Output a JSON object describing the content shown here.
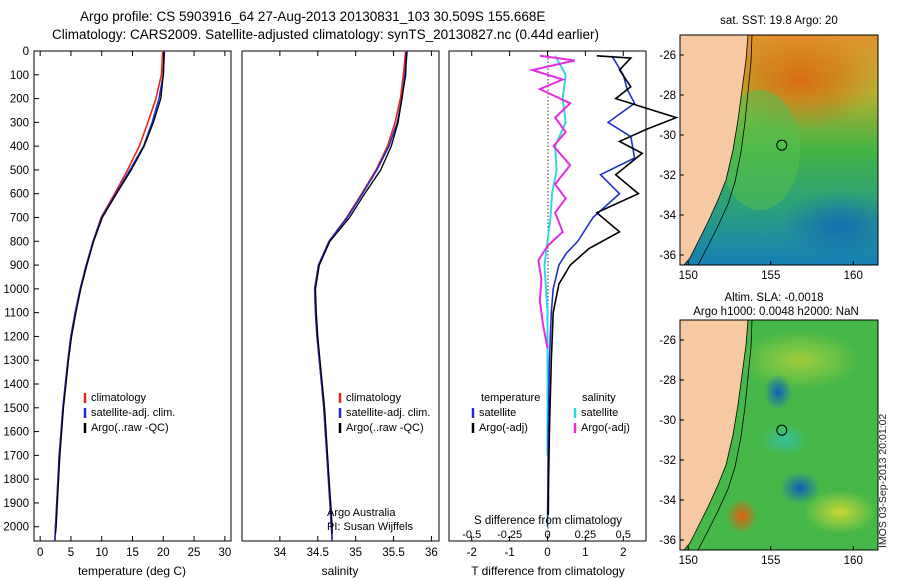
{
  "title": {
    "line1": "Argo profile: CS 5903916_64 27-Aug-2013 20130831_103 30.509S 155.668E",
    "line2": "Climatology: CARS2009. Satellite-adjusted climatology: synTS_20130827.nc (0.44d earlier)"
  },
  "colors": {
    "climatology": "#e8261c",
    "satellite": "#1f2fcc",
    "argo": "#000000",
    "sal_satellite": "#33d6e0",
    "sal_argo": "#e22ee0",
    "land": "#f6c9a2"
  },
  "chart_data": [
    {
      "type": "line",
      "id": "temperature",
      "xlabel": "temperature (deg C)",
      "xlim": [
        -1,
        31
      ],
      "xticks": [
        0,
        5,
        10,
        15,
        20,
        25,
        30
      ],
      "ylim": [
        2060,
        0
      ],
      "yticks": [
        0,
        100,
        200,
        300,
        400,
        500,
        600,
        700,
        800,
        900,
        1000,
        1100,
        1200,
        1300,
        1400,
        1500,
        1600,
        1700,
        1800,
        1900,
        2000
      ],
      "legend": [
        "climatology",
        "satellite-adj. clim.",
        "Argo(..raw -QC)"
      ],
      "series": [
        {
          "name": "climatology",
          "values": [
            [
              19.9,
              0
            ],
            [
              19.7,
              100
            ],
            [
              18.8,
              200
            ],
            [
              17.5,
              300
            ],
            [
              16.1,
              400
            ],
            [
              14.2,
              500
            ],
            [
              12.1,
              600
            ],
            [
              9.9,
              700
            ],
            [
              8.6,
              800
            ],
            [
              7.5,
              900
            ],
            [
              6.5,
              1000
            ],
            [
              5.7,
              1100
            ],
            [
              5.0,
              1200
            ],
            [
              4.5,
              1300
            ],
            [
              4.1,
              1400
            ],
            [
              3.7,
              1500
            ],
            [
              3.4,
              1600
            ],
            [
              3.1,
              1700
            ],
            [
              2.9,
              1800
            ],
            [
              2.7,
              1900
            ],
            [
              2.5,
              2000
            ],
            [
              2.4,
              2060
            ]
          ]
        },
        {
          "name": "satellite-adj. clim.",
          "values": [
            [
              20.2,
              0
            ],
            [
              20.0,
              100
            ],
            [
              19.3,
              200
            ],
            [
              18.2,
              300
            ],
            [
              16.8,
              400
            ],
            [
              14.6,
              500
            ],
            [
              12.3,
              600
            ],
            [
              10.0,
              700
            ],
            [
              8.6,
              800
            ],
            [
              7.5,
              900
            ],
            [
              6.5,
              1000
            ],
            [
              5.7,
              1100
            ],
            [
              5.0,
              1200
            ],
            [
              4.5,
              1300
            ],
            [
              4.1,
              1400
            ],
            [
              3.7,
              1500
            ],
            [
              3.4,
              1600
            ],
            [
              3.1,
              1700
            ],
            [
              2.9,
              1800
            ],
            [
              2.7,
              1900
            ],
            [
              2.5,
              2000
            ],
            [
              2.4,
              2060
            ]
          ]
        },
        {
          "name": "Argo(..raw -QC)",
          "values": [
            [
              20.1,
              5
            ],
            [
              20.0,
              100
            ],
            [
              19.6,
              200
            ],
            [
              18.4,
              300
            ],
            [
              16.9,
              400
            ],
            [
              14.8,
              500
            ],
            [
              12.4,
              600
            ],
            [
              10.1,
              700
            ],
            [
              8.7,
              800
            ],
            [
              7.6,
              900
            ],
            [
              6.6,
              1000
            ],
            [
              5.8,
              1100
            ],
            [
              5.1,
              1200
            ],
            [
              4.6,
              1300
            ],
            [
              4.2,
              1400
            ],
            [
              3.8,
              1500
            ],
            [
              3.5,
              1600
            ],
            [
              3.2,
              1700
            ],
            [
              3.0,
              1800
            ],
            [
              2.8,
              1900
            ],
            [
              2.6,
              2000
            ],
            [
              2.5,
              2030
            ]
          ]
        }
      ]
    },
    {
      "type": "line",
      "id": "salinity",
      "xlabel": "salinity",
      "xlim": [
        33.5,
        36.1
      ],
      "xticks": [
        34,
        34.5,
        35,
        35.5,
        36
      ],
      "xticklabels": [
        "34",
        "34.5",
        "35",
        "35.5",
        "36"
      ],
      "ylim": [
        2060,
        0
      ],
      "legend": [
        "climatology",
        "satellite-adj. clim.",
        "Argo(..raw -QC)"
      ],
      "annotation": [
        "Argo Australia",
        "PI: Susan Wijffels"
      ],
      "series": [
        {
          "name": "climatology",
          "values": [
            [
              35.66,
              0
            ],
            [
              35.63,
              100
            ],
            [
              35.59,
              200
            ],
            [
              35.52,
              300
            ],
            [
              35.42,
              400
            ],
            [
              35.27,
              500
            ],
            [
              35.08,
              600
            ],
            [
              34.88,
              700
            ],
            [
              34.65,
              800
            ],
            [
              34.51,
              900
            ],
            [
              34.46,
              1000
            ],
            [
              34.47,
              1100
            ],
            [
              34.49,
              1200
            ],
            [
              34.52,
              1300
            ],
            [
              34.55,
              1400
            ],
            [
              34.58,
              1500
            ],
            [
              34.6,
              1600
            ],
            [
              34.62,
              1700
            ],
            [
              34.64,
              1800
            ],
            [
              34.66,
              1900
            ],
            [
              34.68,
              2000
            ],
            [
              34.69,
              2060
            ]
          ]
        },
        {
          "name": "satellite-adj. clim.",
          "values": [
            [
              35.68,
              0
            ],
            [
              35.65,
              100
            ],
            [
              35.61,
              200
            ],
            [
              35.55,
              300
            ],
            [
              35.44,
              400
            ],
            [
              35.28,
              500
            ],
            [
              35.09,
              600
            ],
            [
              34.89,
              700
            ],
            [
              34.65,
              800
            ],
            [
              34.51,
              900
            ],
            [
              34.46,
              1000
            ],
            [
              34.47,
              1100
            ],
            [
              34.49,
              1200
            ],
            [
              34.52,
              1300
            ],
            [
              34.55,
              1400
            ],
            [
              34.58,
              1500
            ],
            [
              34.6,
              1600
            ],
            [
              34.62,
              1700
            ],
            [
              34.64,
              1800
            ],
            [
              34.66,
              1900
            ],
            [
              34.68,
              2000
            ],
            [
              34.69,
              2060
            ]
          ]
        },
        {
          "name": "Argo(..raw -QC)",
          "values": [
            [
              35.67,
              5
            ],
            [
              35.66,
              100
            ],
            [
              35.61,
              200
            ],
            [
              35.56,
              300
            ],
            [
              35.47,
              400
            ],
            [
              35.33,
              500
            ],
            [
              35.12,
              600
            ],
            [
              34.92,
              700
            ],
            [
              34.66,
              800
            ],
            [
              34.52,
              900
            ],
            [
              34.47,
              1000
            ],
            [
              34.48,
              1100
            ],
            [
              34.5,
              1200
            ],
            [
              34.53,
              1300
            ],
            [
              34.56,
              1400
            ],
            [
              34.59,
              1500
            ],
            [
              34.61,
              1600
            ],
            [
              34.63,
              1700
            ],
            [
              34.65,
              1800
            ],
            [
              34.67,
              1900
            ],
            [
              34.69,
              2000
            ],
            [
              34.69,
              2030
            ]
          ]
        }
      ]
    },
    {
      "type": "line",
      "id": "difference",
      "xlabel": "T difference from climatology",
      "xlabel_top": "S difference from climatology",
      "xlim": [
        -2.6,
        2.6
      ],
      "xticks": [
        -2,
        -1,
        0,
        1,
        2
      ],
      "xticklabels": [
        "-2",
        "-1",
        "0",
        "1",
        "2"
      ],
      "xticks_s": [
        -0.5,
        -0.25,
        0,
        0.25,
        0.5
      ],
      "xticklabels_s": [
        "-0.5",
        "-0.25",
        "0",
        "0.25",
        "0.5"
      ],
      "ylim": [
        2060,
        0
      ],
      "legend_t": {
        "header": "temperature",
        "items": [
          "satellite",
          "Argo(-adj)"
        ]
      },
      "legend_s": {
        "header": "salinity",
        "items": [
          "satellite",
          "Argo(-adj)"
        ]
      },
      "series": [
        {
          "name": "T satellite",
          "values": [
            [
              1.7,
              20
            ],
            [
              2.0,
              100
            ],
            [
              2.1,
              160
            ],
            [
              2.3,
              220
            ],
            [
              1.6,
              300
            ],
            [
              2.2,
              360
            ],
            [
              2.3,
              450
            ],
            [
              1.4,
              520
            ],
            [
              1.9,
              600
            ],
            [
              1.2,
              700
            ],
            [
              0.8,
              800
            ],
            [
              0.5,
              850
            ],
            [
              0.3,
              900
            ],
            [
              0.15,
              1000
            ],
            [
              0.1,
              1100
            ],
            [
              0.05,
              1300
            ],
            [
              0.02,
              1600
            ],
            [
              0.0,
              2000
            ]
          ]
        },
        {
          "name": "T Argo(-adj)",
          "values": [
            [
              1.3,
              20
            ],
            [
              2.2,
              30
            ],
            [
              1.9,
              80
            ],
            [
              2.2,
              150
            ],
            [
              1.8,
              200
            ],
            [
              3.4,
              280
            ],
            [
              2.6,
              330
            ],
            [
              1.9,
              380
            ],
            [
              2.5,
              430
            ],
            [
              1.8,
              520
            ],
            [
              2.4,
              600
            ],
            [
              1.3,
              680
            ],
            [
              1.9,
              760
            ],
            [
              1.1,
              830
            ],
            [
              0.6,
              900
            ],
            [
              0.3,
              980
            ],
            [
              0.15,
              1100
            ],
            [
              0.1,
              1300
            ],
            [
              0.05,
              1600
            ],
            [
              0.03,
              1800
            ],
            [
              0.02,
              1950
            ]
          ]
        },
        {
          "name": "S satellite",
          "values": [
            [
              0.05,
              20
            ],
            [
              0.12,
              100
            ],
            [
              0.1,
              200
            ],
            [
              0.12,
              300
            ],
            [
              0.05,
              400
            ],
            [
              0.06,
              500
            ],
            [
              0.03,
              600
            ],
            [
              0.02,
              700
            ],
            [
              0.0,
              800
            ],
            [
              -0.02,
              900
            ],
            [
              -0.01,
              1000
            ],
            [
              0.0,
              1100
            ],
            [
              0.0,
              1200
            ],
            [
              0.0,
              1400
            ],
            [
              0.0,
              1700
            ]
          ]
        },
        {
          "name": "S Argo(-adj)",
          "values": [
            [
              -0.05,
              20
            ],
            [
              0.18,
              40
            ],
            [
              -0.1,
              80
            ],
            [
              0.1,
              120
            ],
            [
              -0.05,
              160
            ],
            [
              0.15,
              220
            ],
            [
              0.05,
              280
            ],
            [
              0.12,
              340
            ],
            [
              0.04,
              400
            ],
            [
              0.15,
              480
            ],
            [
              0.05,
              560
            ],
            [
              0.12,
              620
            ],
            [
              0.05,
              680
            ],
            [
              0.1,
              760
            ],
            [
              0.0,
              820
            ],
            [
              -0.06,
              880
            ],
            [
              -0.04,
              960
            ],
            [
              -0.05,
              1050
            ],
            [
              -0.03,
              1150
            ],
            [
              0.0,
              1250
            ]
          ]
        }
      ]
    },
    {
      "type": "heatmap",
      "id": "sst_map",
      "title": "sat. SST: 19.8 Argo: 20",
      "xticks": [
        150,
        155,
        160
      ],
      "yticks": [
        -26,
        -28,
        -30,
        -32,
        -34,
        -36
      ],
      "xlim": [
        149.5,
        161.5
      ],
      "ylim": [
        -36.5,
        -25
      ],
      "argo_position": {
        "lon": 155.668,
        "lat": -30.509
      }
    },
    {
      "type": "heatmap",
      "id": "sla_map",
      "title_line1": "Altim. SLA: -0.0018",
      "title_line2": "Argo h1000: 0.0048 h2000: NaN",
      "xticks": [
        150,
        155,
        160
      ],
      "yticks": [
        -26,
        -28,
        -30,
        -32,
        -34,
        -36
      ],
      "xlim": [
        149.5,
        161.5
      ],
      "ylim": [
        -36.5,
        -25
      ],
      "argo_position": {
        "lon": 155.668,
        "lat": -30.509
      }
    }
  ],
  "stamp": "IMOS 03-Sep-2013 20:01:02"
}
